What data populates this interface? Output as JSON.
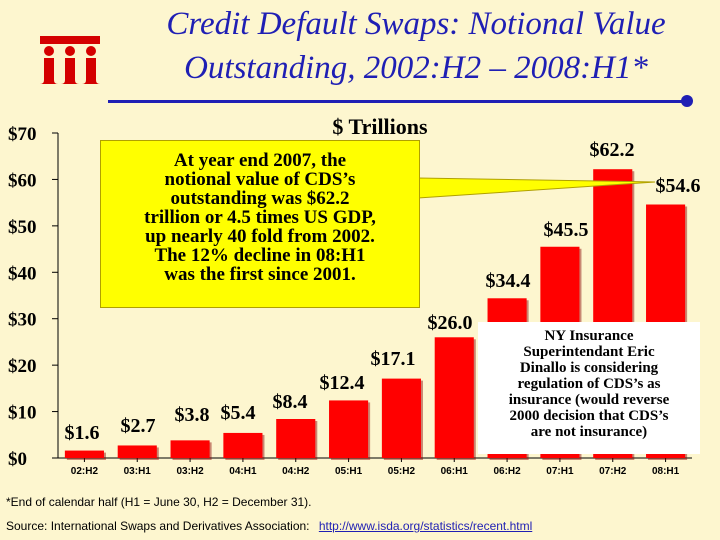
{
  "header": {
    "title_line1": "Credit Default Swaps: Notional Value",
    "title_line2": "Outstanding, 2002:H2 – 2008:H1*",
    "logo": "iii-logo"
  },
  "chart_data": {
    "type": "bar",
    "title": "$ Trillions",
    "categories": [
      "02:H2",
      "03:H1",
      "03:H2",
      "04:H1",
      "04:H2",
      "05:H1",
      "05:H2",
      "06:H1",
      "06:H2",
      "07:H1",
      "07:H2",
      "08:H1"
    ],
    "values": [
      1.6,
      2.7,
      3.8,
      5.4,
      8.4,
      12.4,
      17.1,
      26.0,
      34.4,
      45.5,
      62.2,
      54.6
    ],
    "value_labels": [
      "$1.6",
      "$2.7",
      "$3.8",
      "$5.4",
      "$8.4",
      "$12.4",
      "$17.1",
      "$26.0",
      "$34.4",
      "$45.5",
      "$62.2",
      "$54.6"
    ],
    "yticks": [
      0,
      10,
      20,
      30,
      40,
      50,
      60,
      70
    ],
    "ytick_labels": [
      "$0",
      "$10",
      "$20",
      "$30",
      "$40",
      "$50",
      "$60",
      "$70"
    ],
    "ylim": [
      0,
      70
    ],
    "xlabel": "",
    "ylabel": "",
    "bar_color": "#ff0000"
  },
  "callout": {
    "lines": [
      "At year end 2007, the",
      "notional value of CDS’s",
      "outstanding was $62.2",
      "trillion or 4.5 times US GDP,",
      "up nearly 40 fold from 2002.",
      "The 12% decline in 08:H1",
      "was the first since 2001."
    ]
  },
  "note": {
    "lines": [
      "NY Insurance",
      "Superintendant Eric",
      "Dinallo is considering",
      "regulation of CDS’s as",
      "insurance (would reverse",
      "2000 decision that CDS’s",
      "are not insurance)"
    ]
  },
  "footer": {
    "footnote": "*End of calendar half (H1 = June 30, H2 = December 31).",
    "source_label": "Source:  International Swaps and Derivatives Association:",
    "source_link": "http://www.isda.org/statistics/recent.html"
  },
  "colors": {
    "title": "#1f1fb4",
    "background": "#fdf6cf",
    "bars": "#ff0000",
    "callout": "#ffff00"
  }
}
